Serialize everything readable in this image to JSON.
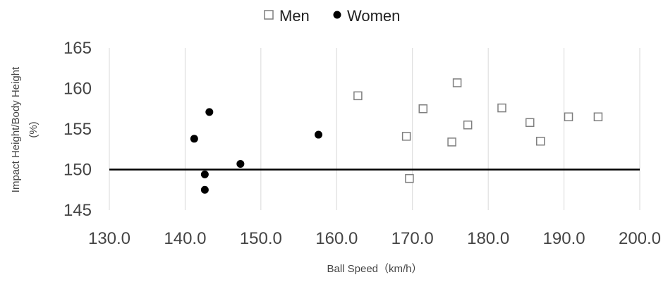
{
  "chart_data": {
    "type": "scatter",
    "title": "",
    "xlabel": "Ball Speed（km/h）",
    "ylabel": "Impact Height/Body Height",
    "ylabel_unit": "(%)",
    "xlim": [
      130,
      200
    ],
    "ylim": [
      145,
      165
    ],
    "x_ticks": [
      "130.0",
      "140.0",
      "150.0",
      "160.0",
      "170.0",
      "180.0",
      "190.0",
      "200.0"
    ],
    "y_ticks": [
      "145",
      "150",
      "155",
      "160",
      "165"
    ],
    "grid": "vertical",
    "legend_position": "top-center",
    "reference_line_y": 150,
    "colors": {
      "men": "#7f7f7f",
      "women": "#000000",
      "grid": "#d9d9d9",
      "reference": "#000000"
    },
    "series": [
      {
        "name": "Men",
        "marker": "open-square",
        "points": [
          {
            "x": 162.8,
            "y": 159.1
          },
          {
            "x": 169.2,
            "y": 154.1
          },
          {
            "x": 169.6,
            "y": 148.9
          },
          {
            "x": 171.4,
            "y": 157.5
          },
          {
            "x": 175.2,
            "y": 153.4
          },
          {
            "x": 175.9,
            "y": 160.7
          },
          {
            "x": 177.3,
            "y": 155.5
          },
          {
            "x": 181.8,
            "y": 157.6
          },
          {
            "x": 185.5,
            "y": 155.8
          },
          {
            "x": 186.9,
            "y": 153.5
          },
          {
            "x": 190.6,
            "y": 156.5
          },
          {
            "x": 194.5,
            "y": 156.5
          }
        ]
      },
      {
        "name": "Women",
        "marker": "filled-circle",
        "points": [
          {
            "x": 141.2,
            "y": 153.8
          },
          {
            "x": 142.6,
            "y": 149.4
          },
          {
            "x": 142.6,
            "y": 147.5
          },
          {
            "x": 143.2,
            "y": 157.1
          },
          {
            "x": 147.3,
            "y": 150.7
          },
          {
            "x": 157.6,
            "y": 154.3
          }
        ]
      }
    ]
  }
}
